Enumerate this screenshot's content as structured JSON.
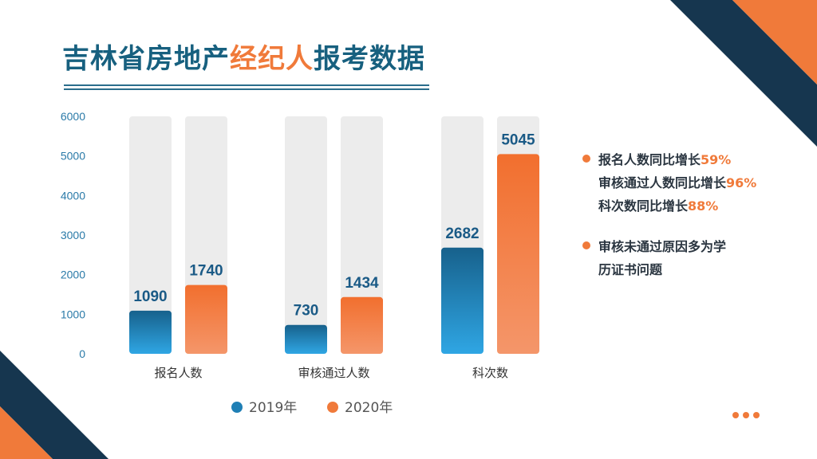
{
  "title": {
    "part1": "吉林省房地产",
    "part2": "经纪人",
    "part3": "报考数据"
  },
  "chart_data": {
    "type": "bar",
    "categories": [
      "报名人数",
      "审核通过人数",
      "科次数"
    ],
    "series": [
      {
        "name": "2019年",
        "values": [
          1090,
          730,
          2682
        ]
      },
      {
        "name": "2020年",
        "values": [
          1740,
          1434,
          5045
        ]
      }
    ],
    "ylim": [
      0,
      6000
    ],
    "yticks": [
      "0",
      "1000",
      "2000",
      "3000",
      "4000",
      "5000",
      "6000"
    ],
    "grid": false,
    "legend": "bottom",
    "colors": {
      "2019": "#1f7fb5",
      "2020": "#f07a3a",
      "track": "#ececec"
    }
  },
  "notes": {
    "b1_l1_text": "报名人数同比增长",
    "b1_l1_pct": "59%",
    "b1_l2_text": "审核通过人数同比增长",
    "b1_l2_pct": "96%",
    "b1_l3_text": "科次数同比增长",
    "b1_l3_pct": "88%",
    "b2_l1": "审核未通过原因多为学",
    "b2_l2": "历证书问题"
  },
  "colors": {
    "navy": "#16364f",
    "orange": "#f07a3a"
  }
}
